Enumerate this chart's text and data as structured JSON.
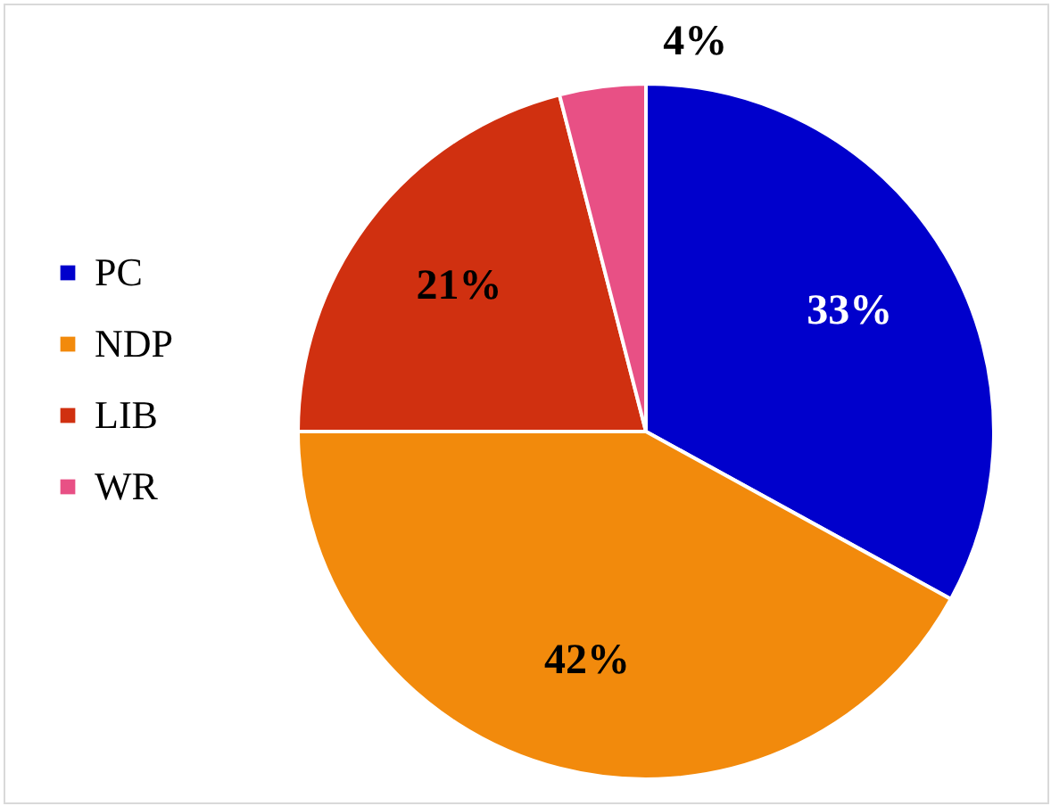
{
  "chart_data": {
    "type": "pie",
    "categories": [
      "PC",
      "NDP",
      "LIB",
      "WR"
    ],
    "values": [
      33,
      42,
      21,
      4
    ],
    "colors": [
      "#0000cc",
      "#f28a0c",
      "#d03010",
      "#e85085"
    ],
    "value_labels": [
      "33%",
      "42%",
      "21%",
      "4%"
    ],
    "legend": "left"
  }
}
